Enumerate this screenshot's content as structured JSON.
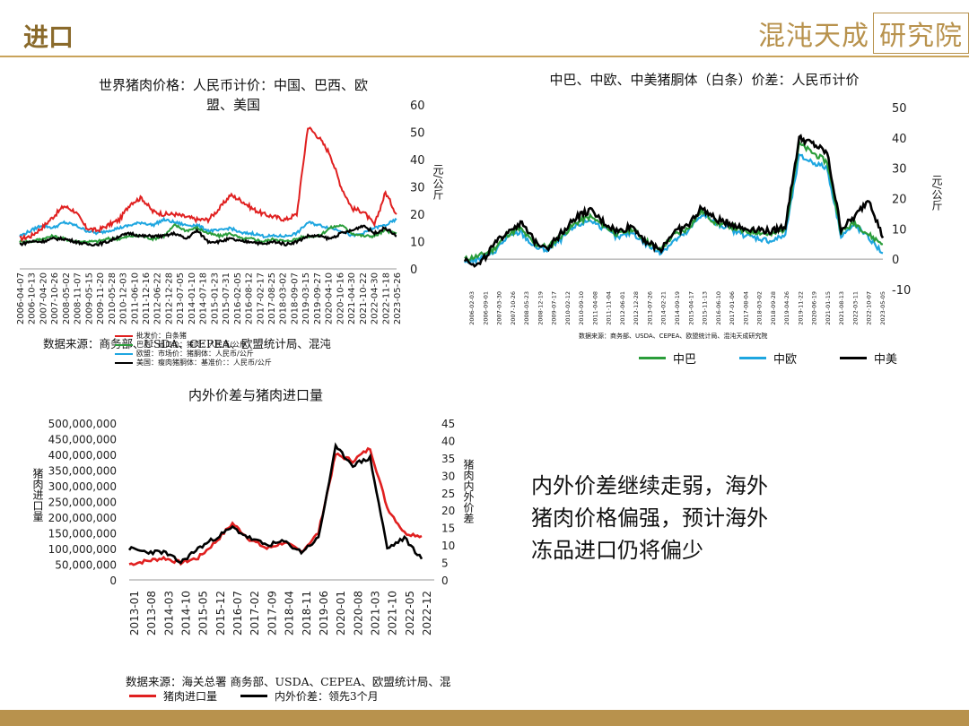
{
  "header": {
    "title": "进口",
    "logo_text": "混沌天成",
    "logo_box_text": "研究院"
  },
  "colors": {
    "gold": "#b8924d",
    "red": "#e02020",
    "green": "#2a9d3a",
    "blue": "#1ea6e0",
    "black": "#000000"
  },
  "chart1": {
    "title_line1": "世界猪肉价格：人民币计价：中国、巴西、欧",
    "title_line2": "盟、美国",
    "ylabel": "元/公斤",
    "source": "数据来源：商务部、USDA、CEPEA、欧盟统计局、混沌",
    "legend_overlap": [
      "批发价：白条猪",
      "巴西：出口价：猪肉：人民币/公斤",
      "欧盟：市场价：猪胴体：人民币/公斤",
      "美国：瘦肉猪胴体：基准价：：人民币/公斤"
    ]
  },
  "chart2": {
    "title": "中巴、中欧、中美猪胴体（白条）价差：人民币计价",
    "ylabel": "元/公斤",
    "source": "数据来源：商务部、USDA、CEPEA、欧盟统计局、混沌天成研究院",
    "legend": [
      "中巴",
      "中欧",
      "中美"
    ]
  },
  "chart3": {
    "title": "内外价差与猪肉进口量",
    "ylabel_left": "猪肉进口量",
    "ylabel_right": "猪肉内外价差",
    "source": "数据来源：海关总署 商务部、USDA、CEPEA、欧盟统计局、混",
    "legend": [
      "猪肉进口量",
      "内外价差：领先3个月"
    ]
  },
  "note": {
    "line1": "内外价差继续走弱，海外",
    "line2": "猪肉价格偏强，预计海外",
    "line3": "冻品进口仍将偏少"
  },
  "chart_data": [
    {
      "type": "line",
      "x": [
        "2006-04-07",
        "2006-10-13",
        "2007-04-20",
        "2007-10-26",
        "2008-05-02",
        "2008-11-07",
        "2009-05-15",
        "2009-11-20",
        "2010-05-28",
        "2010-12-03",
        "2011-06-10",
        "2011-12-16",
        "2012-06-22",
        "2012-12-28",
        "2013-07-05",
        "2014-01-10",
        "2014-07-18",
        "2015-01-23",
        "2015-07-31",
        "2016-02-05",
        "2016-08-12",
        "2017-02-17",
        "2017-08-25",
        "2018-03-02",
        "2018-09-07",
        "2019-03-15",
        "2019-09-20",
        "2019-09-27",
        "2020-04-03",
        "2020-10-09",
        "2021-04-16",
        "2021-10-22",
        "2022-04-30",
        "2022-11-18",
        "2023-05-26"
      ],
      "x_tick_labels": [
        "2006-04-07",
        "2006-10-13",
        "2007-04-20",
        "2007-10-26",
        "2008-05-02",
        "2008-11-07",
        "2009-05-15",
        "2009-11-20",
        "2010-05-28",
        "2010-12-03",
        "2011-06-10",
        "2011-12-16",
        "2012-06-22",
        "2012-12-28",
        "2013-07-05",
        "2014-01-10",
        "2014-07-18",
        "2015-01-23",
        "2015-07-31",
        "2016-02-05",
        "2016-08-12",
        "2017-02-17",
        "2017-08-25",
        "2018-03-02",
        "2018-09-07",
        "2019-03-15",
        "2019-09-27",
        "2020-04-10",
        "2020-10-16",
        "2021-04-30",
        "2021-10-22",
        "2022-04-30",
        "2022-11-18",
        "2023-05-26"
      ],
      "series": [
        {
          "name": "批发价：白条猪",
          "values": [
            11,
            12,
            15,
            19,
            23,
            21,
            15,
            14,
            16,
            18,
            24,
            26,
            21,
            20,
            20,
            19,
            18,
            18,
            22,
            27,
            25,
            22,
            20,
            19,
            18,
            20,
            52,
            48,
            42,
            30,
            22,
            21,
            16,
            28,
            20
          ]
        },
        {
          "name": "巴西：出口价：猪肉：人民币/公斤",
          "values": [
            10,
            10,
            11,
            12,
            11,
            10,
            10,
            10,
            11,
            11,
            12,
            12,
            11,
            12,
            16,
            14,
            15,
            13,
            12,
            13,
            11,
            11,
            10,
            11,
            10,
            11,
            12,
            12,
            15,
            16,
            13,
            12,
            12,
            14,
            13
          ]
        },
        {
          "name": "欧盟：市场价：猪胴体：人民币/公斤",
          "values": [
            12,
            14,
            16,
            15,
            17,
            16,
            14,
            13,
            14,
            15,
            16,
            17,
            16,
            18,
            17,
            16,
            16,
            14,
            14,
            15,
            13,
            13,
            12,
            12,
            12,
            13,
            17,
            16,
            15,
            14,
            12,
            13,
            15,
            16,
            18
          ]
        },
        {
          "name": "美国：瘦肉猪胴体：基准价：：人民币/公斤",
          "values": [
            9,
            10,
            10,
            11,
            11,
            10,
            9,
            9,
            10,
            12,
            13,
            12,
            12,
            12,
            13,
            11,
            14,
            10,
            10,
            11,
            10,
            10,
            9,
            10,
            9,
            10,
            12,
            12,
            11,
            13,
            14,
            16,
            13,
            15,
            12
          ]
        }
      ],
      "ylim": [
        0,
        60
      ],
      "yticks": [
        0,
        10,
        20,
        30,
        40,
        50,
        60
      ]
    },
    {
      "type": "line",
      "x_tick_labels": [
        "2006-02-03",
        "2006-09-01",
        "2007-03-30",
        "2007-10-26",
        "2008-05-23",
        "2008-12-19",
        "2009-07-17",
        "2010-02-12",
        "2010-09-10",
        "2011-04-08",
        "2011-11-04",
        "2012-06-01",
        "2012-12-28",
        "2013-07-26",
        "2014-02-21",
        "2014-09-19",
        "2015-04-17",
        "2015-11-13",
        "2016-06-10",
        "2017-01-06",
        "2017-08-04",
        "2018-03-02",
        "2018-09-28",
        "2019-04-26",
        "2019-11-22",
        "2020-06-19",
        "2021-01-15",
        "2021-08-13",
        "2022-03-11",
        "2022-10-07",
        "2023-05-05"
      ],
      "series": [
        {
          "name": "中巴",
          "values": [
            0,
            1,
            3,
            8,
            10,
            5,
            4,
            8,
            12,
            14,
            11,
            8,
            10,
            6,
            3,
            8,
            10,
            16,
            12,
            11,
            9,
            9,
            8,
            10,
            38,
            35,
            32,
            9,
            12,
            8,
            5
          ]
        },
        {
          "name": "中欧",
          "values": [
            -1,
            0,
            2,
            7,
            9,
            4,
            3,
            7,
            11,
            13,
            10,
            7,
            9,
            5,
            2,
            6,
            9,
            15,
            12,
            10,
            8,
            7,
            6,
            8,
            34,
            32,
            30,
            8,
            11,
            7,
            2
          ]
        },
        {
          "name": "中美",
          "values": [
            0,
            -2,
            4,
            9,
            12,
            6,
            4,
            9,
            14,
            16,
            12,
            9,
            11,
            6,
            3,
            9,
            11,
            17,
            13,
            12,
            10,
            10,
            9,
            11,
            40,
            38,
            35,
            10,
            14,
            20,
            7
          ]
        }
      ],
      "ylim": [
        -10,
        50
      ],
      "yticks": [
        -10,
        0,
        10,
        20,
        30,
        40,
        50
      ]
    },
    {
      "type": "line",
      "x_tick_labels": [
        "2013-01",
        "2013-08",
        "2014-03",
        "2014-10",
        "2015-05",
        "2015-12",
        "2016-07",
        "2017-02",
        "2017-09",
        "2018-04",
        "2018-11",
        "2019-06",
        "2020-01",
        "2020-08",
        "2021-03",
        "2021-10",
        "2022-05",
        "2022-12"
      ],
      "series": [
        {
          "name": "猪肉进口量",
          "axis": "left",
          "values": [
            50000000,
            60000000,
            70000000,
            55000000,
            70000000,
            120000000,
            180000000,
            130000000,
            100000000,
            120000000,
            90000000,
            150000000,
            400000000,
            380000000,
            420000000,
            230000000,
            150000000,
            140000000
          ]
        },
        {
          "name": "内外价差：领先3个月",
          "axis": "right",
          "values": [
            9,
            8,
            8,
            5,
            9,
            12,
            15,
            12,
            10,
            11,
            8,
            12,
            38,
            33,
            35,
            9,
            12,
            6
          ]
        }
      ],
      "ylim_left": [
        0,
        500000000
      ],
      "yticks_left": [
        "0",
        "50,000,000",
        "100,000,000",
        "150,000,000",
        "200,000,000",
        "250,000,000",
        "300,000,000",
        "350,000,000",
        "400,000,000",
        "450,000,000",
        "500,000,000"
      ],
      "ylim_right": [
        0,
        45
      ],
      "yticks_right": [
        0,
        5,
        10,
        15,
        20,
        25,
        30,
        35,
        40,
        45
      ]
    }
  ]
}
